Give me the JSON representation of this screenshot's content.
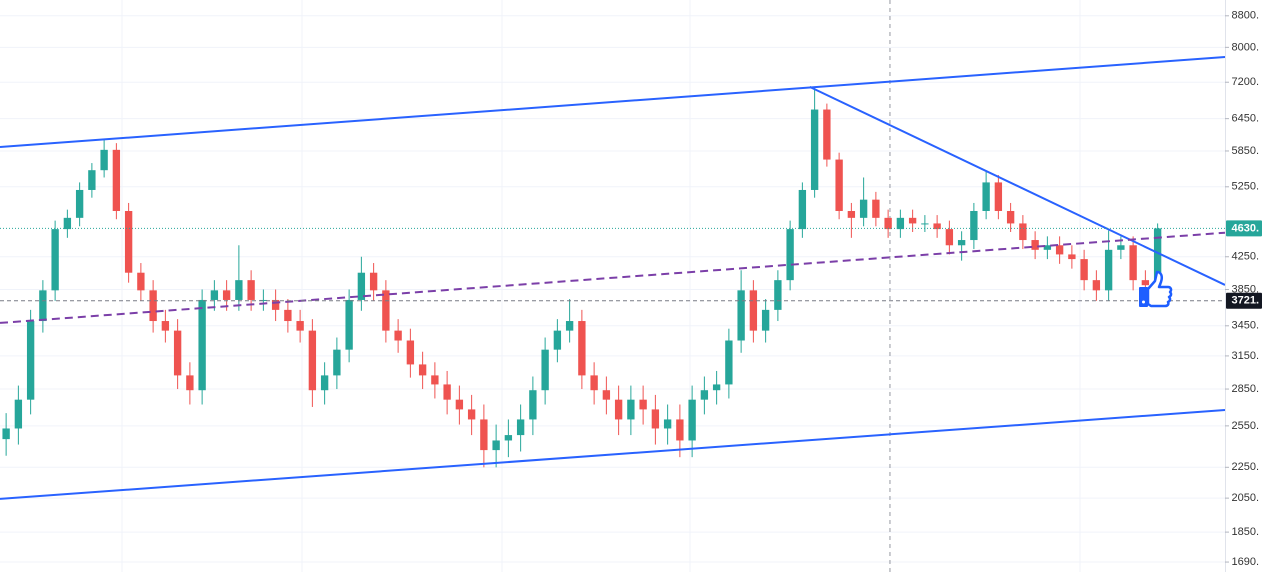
{
  "chart_data": {
    "type": "candlestick",
    "log_scale": true,
    "grid": true,
    "up_color": "#26a69a",
    "down_color": "#ef5350",
    "xlim": [
      0,
      100
    ],
    "ylim": [
      1640,
      9230
    ],
    "yticks": [
      {
        "value": 8800,
        "label": "8800."
      },
      {
        "value": 8000,
        "label": "8000."
      },
      {
        "value": 7200,
        "label": "7200."
      },
      {
        "value": 6450,
        "label": "6450."
      },
      {
        "value": 5850,
        "label": "5850."
      },
      {
        "value": 5250,
        "label": "5250."
      },
      {
        "value": 4250,
        "label": "4250."
      },
      {
        "value": 3850,
        "label": "3850."
      },
      {
        "value": 3450,
        "label": "3450."
      },
      {
        "value": 3150,
        "label": "3150."
      },
      {
        "value": 2850,
        "label": "2850."
      },
      {
        "value": 2550,
        "label": "2550."
      },
      {
        "value": 2250,
        "label": "2250."
      },
      {
        "value": 2050,
        "label": "2050."
      },
      {
        "value": 1850,
        "label": "1850."
      },
      {
        "value": 1690,
        "label": "1690."
      }
    ],
    "open": [
      2450,
      2530,
      2760,
      3500,
      3840,
      4620,
      4780,
      5200,
      5520,
      5870,
      4880,
      4050,
      3840,
      3500,
      3400,
      2970,
      2840,
      3730,
      3840,
      3730,
      3960,
      3730,
      3730,
      3620,
      3500,
      3400,
      2840,
      2970,
      3210,
      3730,
      4050,
      3840,
      3400,
      3300,
      3070,
      2970,
      2890,
      2760,
      2680,
      2600,
      2370,
      2440,
      2480,
      2600,
      2840,
      3210,
      3400,
      3500,
      2970,
      2840,
      2760,
      2600,
      2760,
      2680,
      2530,
      2600,
      2440,
      2760,
      2840,
      2890,
      3300,
      3840,
      3400,
      3620,
      3960,
      4620,
      5200,
      6630,
      5700,
      4880,
      4780,
      5050,
      4780,
      4620,
      4780,
      4700,
      4700,
      4620,
      4400,
      4470,
      4880,
      5320,
      4880,
      4700,
      4470,
      4340,
      4400,
      4280,
      4220,
      3960,
      3840,
      4340,
      4400,
      3960,
      3900
    ],
    "high": [
      2650,
      2880,
      3620,
      3960,
      4740,
      4900,
      5320,
      5640,
      6050,
      5990,
      5000,
      4170,
      3960,
      3620,
      3520,
      3090,
      3850,
      3960,
      3960,
      4400,
      4080,
      3850,
      3850,
      3740,
      3620,
      3520,
      3090,
      3330,
      3850,
      4250,
      4170,
      3960,
      3520,
      3420,
      3190,
      3090,
      3010,
      2880,
      2800,
      2720,
      2560,
      2600,
      2720,
      2960,
      3330,
      3520,
      3740,
      3620,
      3090,
      2960,
      2880,
      2880,
      2880,
      2800,
      2720,
      2720,
      2880,
      2960,
      3010,
      3420,
      4080,
      3960,
      3740,
      4080,
      4740,
      5320,
      7100,
      6750,
      5820,
      5000,
      5400,
      5170,
      4900,
      4900,
      4900,
      4820,
      4820,
      4740,
      4590,
      5000,
      5500,
      5440,
      5000,
      4820,
      4590,
      4520,
      4520,
      4400,
      4340,
      4080,
      4600,
      4520,
      4520,
      4080,
      4700
    ],
    "low": [
      2330,
      2410,
      2640,
      3380,
      3720,
      4500,
      4660,
      5080,
      5400,
      4760,
      3930,
      3720,
      3380,
      3280,
      2850,
      2720,
      2720,
      3610,
      3610,
      3610,
      3610,
      3610,
      3500,
      3380,
      3280,
      2700,
      2720,
      2850,
      3090,
      3610,
      3720,
      3280,
      3180,
      2950,
      2850,
      2770,
      2640,
      2560,
      2480,
      2250,
      2250,
      2320,
      2360,
      2480,
      2720,
      3090,
      3280,
      2850,
      2720,
      2640,
      2480,
      2480,
      2560,
      2410,
      2410,
      2320,
      2320,
      2640,
      2720,
      2770,
      3180,
      3280,
      3280,
      3500,
      3840,
      4500,
      5080,
      5580,
      4760,
      4500,
      4660,
      4660,
      4500,
      4500,
      4580,
      4580,
      4500,
      4280,
      4200,
      4350,
      4760,
      4760,
      4580,
      4350,
      4220,
      4220,
      4160,
      4100,
      3840,
      3720,
      3720,
      4220,
      3840,
      3780,
      3780
    ],
    "close": [
      2530,
      2760,
      3500,
      3840,
      4620,
      4780,
      5200,
      5520,
      5870,
      4880,
      4050,
      3840,
      3500,
      3400,
      2970,
      2840,
      3730,
      3840,
      3730,
      3960,
      3730,
      3730,
      3620,
      3500,
      3400,
      2840,
      2970,
      3210,
      3730,
      4050,
      3840,
      3400,
      3300,
      3070,
      2970,
      2890,
      2760,
      2680,
      2600,
      2370,
      2440,
      2480,
      2600,
      2840,
      3210,
      3400,
      3500,
      2970,
      2840,
      2760,
      2600,
      2760,
      2680,
      2530,
      2600,
      2440,
      2760,
      2840,
      2890,
      3300,
      3840,
      3400,
      3620,
      3960,
      4620,
      5200,
      6630,
      5700,
      4880,
      4780,
      5050,
      4780,
      4620,
      4780,
      4700,
      4700,
      4620,
      4400,
      4470,
      4880,
      5320,
      4880,
      4700,
      4470,
      4340,
      4400,
      4280,
      4220,
      3960,
      3840,
      4340,
      4400,
      3960,
      3900,
      4630
    ],
    "drawings": [
      {
        "points": [
          [
            0,
            5920
          ],
          [
            100,
            7770
          ]
        ],
        "color": "#2962ff",
        "dash": false
      },
      {
        "points": [
          [
            0,
            2045
          ],
          [
            100,
            2675
          ]
        ],
        "color": "#2962ff",
        "dash": false
      },
      {
        "points": [
          [
            66.1,
            7100
          ],
          [
            100,
            3903
          ]
        ],
        "color": "#2962ff",
        "dash": false
      },
      {
        "points": [
          [
            0,
            3480
          ],
          [
            100,
            4570
          ]
        ],
        "color": "#7b3fa8",
        "dash": true
      }
    ],
    "price_lines": [
      {
        "value": 4630,
        "label": "4630.",
        "color": "#26a69a",
        "dotted": true
      },
      {
        "value": 3721,
        "label": "3721.",
        "color": "#131722",
        "dotted": false
      }
    ],
    "crosshair_x": 72.65
  }
}
